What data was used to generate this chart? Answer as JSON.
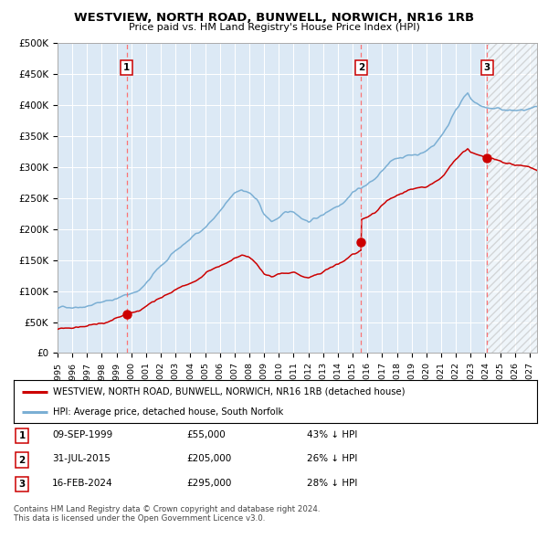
{
  "title": "WESTVIEW, NORTH ROAD, BUNWELL, NORWICH, NR16 1RB",
  "subtitle": "Price paid vs. HM Land Registry's House Price Index (HPI)",
  "ylim": [
    0,
    500000
  ],
  "yticks": [
    0,
    50000,
    100000,
    150000,
    200000,
    250000,
    300000,
    350000,
    400000,
    450000,
    500000
  ],
  "ytick_labels": [
    "£0",
    "£50K",
    "£100K",
    "£150K",
    "£200K",
    "£250K",
    "£300K",
    "£350K",
    "£400K",
    "£450K",
    "£500K"
  ],
  "xlim_start": 1995.0,
  "xlim_end": 2027.5,
  "hpi_color": "#7BAFD4",
  "price_color": "#CC0000",
  "vline_color": "#FF6666",
  "bg_color": "#dce9f5",
  "legend_label_red": "WESTVIEW, NORTH ROAD, BUNWELL, NORWICH, NR16 1RB (detached house)",
  "legend_label_blue": "HPI: Average price, detached house, South Norfolk",
  "sales": [
    {
      "num": 1,
      "date_label": "09-SEP-1999",
      "price_str": "£55,000",
      "pct": "43% ↓ HPI",
      "x_year": 1999.69,
      "y_price": 55000
    },
    {
      "num": 2,
      "date_label": "31-JUL-2015",
      "price_str": "£205,000",
      "pct": "26% ↓ HPI",
      "x_year": 2015.58,
      "y_price": 205000
    },
    {
      "num": 3,
      "date_label": "16-FEB-2024",
      "price_str": "£295,000",
      "pct": "28% ↓ HPI",
      "x_year": 2024.12,
      "y_price": 295000
    }
  ],
  "footer1": "Contains HM Land Registry data © Crown copyright and database right 2024.",
  "footer2": "This data is licensed under the Open Government Licence v3.0."
}
